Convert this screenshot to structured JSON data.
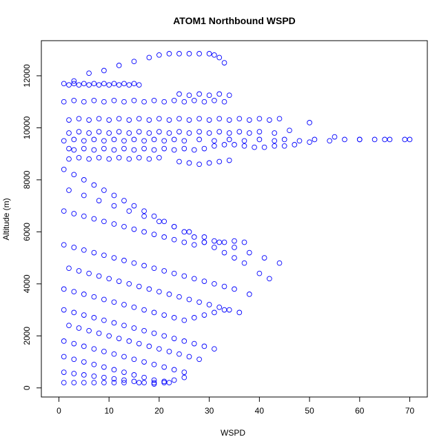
{
  "chart_data": {
    "type": "scatter",
    "title": "ATOM1 Northbound WSPD",
    "xlabel": "WSPD",
    "ylabel": "Altitude (m)",
    "xlim": [
      -3.5,
      73.5
    ],
    "ylim": [
      -350,
      13350
    ],
    "x_ticks": [
      "0",
      "10",
      "20",
      "30",
      "40",
      "50",
      "60",
      "70"
    ],
    "y_ticks": [
      "0",
      "2000",
      "4000",
      "6000",
      "8000",
      "10000",
      "12000"
    ],
    "marker": "open-circle",
    "color": "#0000ff",
    "grid": false,
    "legend": "none",
    "series": [
      {
        "name": "",
        "x": [
          1,
          2,
          3,
          4,
          5,
          6,
          7,
          8,
          9,
          10,
          11,
          12,
          13,
          14,
          15,
          16,
          2,
          3,
          5,
          7,
          9,
          11,
          13,
          15,
          17,
          19,
          21,
          23,
          25,
          27,
          29,
          31,
          33,
          35,
          37,
          39,
          41,
          43,
          45,
          47,
          50,
          55,
          60,
          65,
          70,
          1,
          3,
          5,
          7,
          9,
          11,
          13,
          15,
          17,
          19,
          21,
          23,
          25,
          27,
          29,
          31,
          33,
          2,
          4,
          6,
          8,
          10,
          12,
          14,
          16,
          18,
          20,
          22,
          24,
          26,
          28,
          30,
          32,
          34,
          36,
          38,
          40,
          42,
          44,
          2,
          4,
          6,
          8,
          10,
          12,
          14,
          16,
          18,
          20,
          22,
          24,
          26,
          28,
          30,
          32,
          34,
          36,
          38,
          40,
          43,
          46,
          50,
          2,
          4,
          6,
          8,
          10,
          12,
          14,
          16,
          18,
          20,
          24,
          26,
          28,
          30,
          32,
          34,
          1,
          3,
          5,
          7,
          9,
          11,
          13,
          15,
          17,
          19,
          21,
          23,
          25,
          27,
          29,
          31,
          33,
          35,
          37,
          40,
          2,
          5,
          8,
          11,
          14,
          17,
          20,
          23,
          26,
          29,
          32,
          35,
          38,
          41,
          44,
          1,
          3,
          5,
          7,
          9,
          11,
          13,
          15,
          17,
          19,
          21,
          23,
          25,
          27,
          29,
          31,
          33,
          35,
          37,
          42,
          1,
          3,
          5,
          7,
          9,
          11,
          13,
          15,
          17,
          19,
          21,
          23,
          25,
          27,
          29,
          31,
          33,
          35,
          38,
          2,
          4,
          6,
          8,
          10,
          12,
          14,
          16,
          18,
          20,
          22,
          24,
          26,
          28,
          30,
          32,
          34,
          36,
          1,
          3,
          5,
          7,
          9,
          11,
          13,
          15,
          17,
          19,
          21,
          23,
          25,
          27,
          29,
          31,
          33,
          1,
          3,
          5,
          7,
          9,
          11,
          13,
          15,
          17,
          19,
          21,
          23,
          25,
          27,
          29,
          31,
          2,
          4,
          6,
          8,
          10,
          12,
          14,
          16,
          18,
          20,
          22,
          24,
          26,
          28,
          1,
          3,
          5,
          7,
          9,
          11,
          13,
          15,
          17,
          19,
          21,
          23,
          25,
          1,
          3,
          5,
          7,
          9,
          11,
          13,
          15,
          17,
          19,
          21,
          23,
          25,
          1,
          3,
          5,
          7,
          9,
          11,
          13,
          15,
          17,
          19,
          21,
          1,
          3,
          5,
          7,
          9,
          11,
          13,
          16,
          19,
          22,
          1,
          3,
          5,
          7,
          9,
          11,
          13,
          15,
          17,
          19,
          21,
          23,
          25,
          28,
          31,
          34,
          37,
          40,
          43,
          45,
          48,
          51,
          54,
          57,
          60,
          63,
          66,
          69,
          3,
          6,
          9,
          12,
          15,
          18,
          20,
          22,
          24,
          26,
          28,
          30,
          31,
          32,
          33,
          24,
          26,
          28,
          30,
          32,
          34
        ],
        "y": [
          11700,
          11650,
          11700,
          11650,
          11700,
          11650,
          11700,
          11650,
          11700,
          11650,
          11700,
          11650,
          11700,
          11650,
          11700,
          11650,
          9200,
          9150,
          9200,
          9150,
          9200,
          9150,
          9200,
          9150,
          9200,
          9150,
          9200,
          9150,
          9200,
          9150,
          9200,
          9300,
          9350,
          9350,
          9300,
          9250,
          9250,
          9300,
          9300,
          9350,
          9450,
          9650,
          9550,
          9550,
          9550,
          11000,
          11050,
          11000,
          11050,
          11000,
          11050,
          11000,
          11050,
          11000,
          11050,
          11000,
          11050,
          11000,
          11050,
          11000,
          11050,
          11000,
          10300,
          10350,
          10300,
          10350,
          10300,
          10350,
          10300,
          10350,
          10300,
          10350,
          10300,
          10350,
          10300,
          10350,
          10300,
          10350,
          10300,
          10350,
          10300,
          10350,
          10300,
          10350,
          9800,
          9850,
          9800,
          9850,
          9800,
          9850,
          9800,
          9850,
          9800,
          9850,
          9800,
          9850,
          9800,
          9850,
          9800,
          9850,
          9800,
          9850,
          9800,
          9850,
          9800,
          9900,
          10200,
          8800,
          8850,
          8800,
          8850,
          8800,
          8850,
          8800,
          8850,
          8800,
          8850,
          8700,
          8650,
          8600,
          8650,
          8700,
          8750,
          8400,
          8200,
          8000,
          7800,
          7600,
          7400,
          7200,
          7000,
          6800,
          6600,
          6400,
          6200,
          6000,
          5800,
          5600,
          5400,
          5200,
          5000,
          4800,
          4400,
          7600,
          7400,
          7200,
          7000,
          6800,
          6600,
          6400,
          6200,
          6000,
          5800,
          5600,
          5400,
          5200,
          5000,
          4800,
          6800,
          6700,
          6600,
          6500,
          6400,
          6300,
          6200,
          6100,
          6000,
          5900,
          5800,
          5700,
          5600,
          5500,
          5600,
          5650,
          5600,
          5650,
          5600,
          4200,
          5500,
          5400,
          5300,
          5200,
          5100,
          5000,
          4900,
          4800,
          4700,
          4600,
          4500,
          4400,
          4300,
          4200,
          4100,
          4000,
          3900,
          3800,
          3600,
          4600,
          4500,
          4400,
          4300,
          4200,
          4100,
          4000,
          3900,
          3800,
          3700,
          3600,
          3500,
          3400,
          3300,
          3200,
          3100,
          3000,
          2900,
          3800,
          3700,
          3600,
          3500,
          3400,
          3300,
          3200,
          3100,
          3000,
          2900,
          2800,
          2700,
          2600,
          2700,
          2800,
          2900,
          3000,
          3000,
          2900,
          2800,
          2700,
          2600,
          2500,
          2400,
          2300,
          2200,
          2100,
          2000,
          1900,
          1800,
          1700,
          1600,
          1500,
          2400,
          2300,
          2200,
          2100,
          2000,
          1900,
          1800,
          1700,
          1600,
          1500,
          1400,
          1300,
          1200,
          1100,
          1800,
          1700,
          1600,
          1500,
          1400,
          1300,
          1200,
          1100,
          1000,
          900,
          800,
          700,
          600,
          1200,
          1100,
          1000,
          900,
          800,
          700,
          600,
          500,
          400,
          300,
          250,
          300,
          400,
          600,
          550,
          500,
          450,
          400,
          350,
          300,
          250,
          200,
          150,
          200,
          200,
          200,
          200,
          200,
          200,
          200,
          200,
          200,
          200,
          200,
          9500,
          9550,
          9500,
          9550,
          9500,
          9550,
          9500,
          9550,
          9500,
          9550,
          9500,
          9550,
          9500,
          9550,
          9500,
          9550,
          9500,
          9550,
          9500,
          9550,
          9500,
          9550,
          9500,
          9550,
          9550,
          9550,
          9550,
          9550,
          11800,
          12100,
          12200,
          12400,
          12550,
          12700,
          12800,
          12850,
          12850,
          12850,
          12850,
          12850,
          12800,
          12700,
          12500,
          11300,
          11250,
          11300,
          11250,
          11300,
          11250
        ]
      }
    ]
  }
}
